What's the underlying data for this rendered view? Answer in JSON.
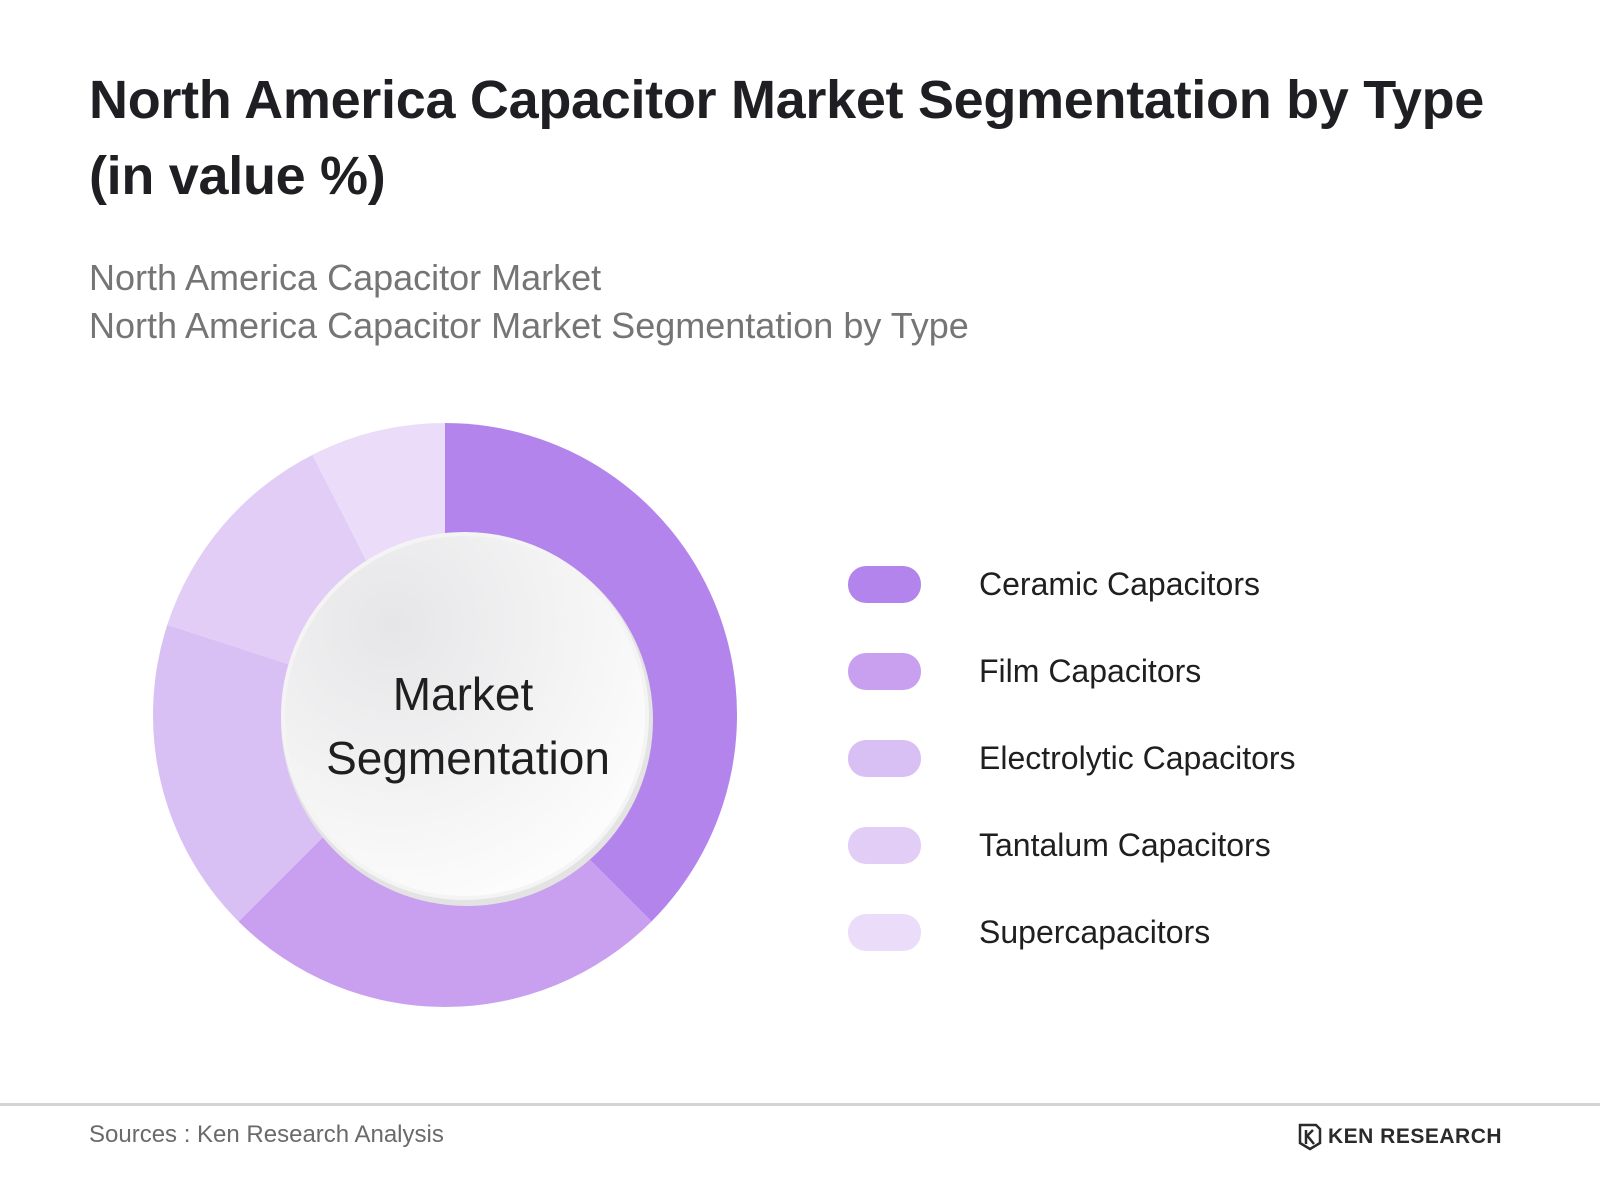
{
  "title": "North America Capacitor Market Segmentation by Type (in value %)",
  "subtitles": [
    "North America Capacitor Market",
    "North America Capacitor Market Segmentation by Type"
  ],
  "center_label": [
    "Market",
    "Segmentation"
  ],
  "footer": {
    "source": "Sources : Ken Research Analysis",
    "brand": "KEN RESEARCH"
  },
  "colors": {
    "ceramic": "#b385ec",
    "film": "#c8a0ef",
    "electrolytic": "#d9c0f4",
    "tantalum": "#e2cdf6",
    "supercap": "#ebdcf9"
  },
  "chart_data": {
    "type": "pie",
    "donut": true,
    "labels": [
      "Ceramic Capacitors",
      "Film Capacitors",
      "Electrolytic Capacitors",
      "Tantalum Capacitors",
      "Supercapacitors"
    ],
    "values": [
      37.5,
      25,
      17.5,
      12.5,
      7.5
    ],
    "colors": [
      "#b385ec",
      "#c8a0ef",
      "#d9c0f4",
      "#e2cdf6",
      "#ebdcf9"
    ],
    "start_angle": "top",
    "direction": "clockwise",
    "legend": "right"
  }
}
